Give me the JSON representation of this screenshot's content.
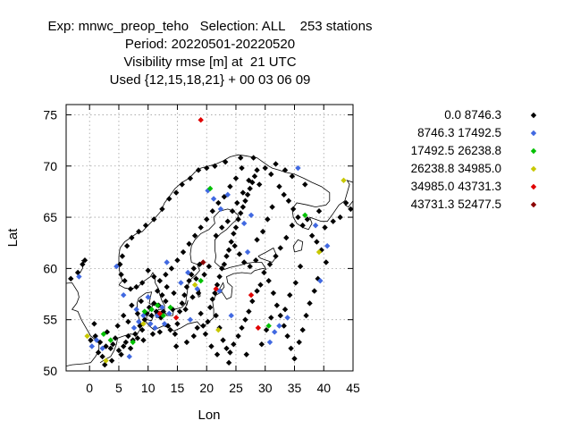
{
  "title": {
    "line1": "Exp: mnwc_preop_teho   Selection: ALL    253 stations",
    "line2": "Period: 20220501-20220520",
    "line3": "Visibility rmse [m] at  21 UTC",
    "line4": "Used {12,15,18,21} + 00 03 06 09"
  },
  "chart_data": {
    "type": "scatter",
    "xlabel": "Lon",
    "ylabel": "Lat",
    "xlim": [
      -4,
      45
    ],
    "ylim": [
      50,
      76
    ],
    "xticks": [
      0,
      5,
      10,
      15,
      20,
      25,
      30,
      35,
      40,
      45
    ],
    "yticks": [
      50,
      55,
      60,
      65,
      70,
      75
    ],
    "grid": true,
    "legend_placement": "right",
    "series": [
      {
        "name": "0.0 8746.3",
        "color": "#000000",
        "points": [
          [
            -3.2,
            59.0
          ],
          [
            -2.0,
            59.6
          ],
          [
            -1.2,
            60.4
          ],
          [
            -0.8,
            60.8
          ],
          [
            0.2,
            53.0
          ],
          [
            1.0,
            53.4
          ],
          [
            1.5,
            51.8
          ],
          [
            2.2,
            51.4
          ],
          [
            2.8,
            52.4
          ],
          [
            3.0,
            53.8
          ],
          [
            3.6,
            52.2
          ],
          [
            4.0,
            52.6
          ],
          [
            4.4,
            53.2
          ],
          [
            5.0,
            52.0
          ],
          [
            5.4,
            51.6
          ],
          [
            5.8,
            52.4
          ],
          [
            6.2,
            52.8
          ],
          [
            6.6,
            53.4
          ],
          [
            7.0,
            52.2
          ],
          [
            7.4,
            53.0
          ],
          [
            7.8,
            53.6
          ],
          [
            8.2,
            53.2
          ],
          [
            8.6,
            54.4
          ],
          [
            9.0,
            54.0
          ],
          [
            9.4,
            55.0
          ],
          [
            9.8,
            55.6
          ],
          [
            10.2,
            56.2
          ],
          [
            10.6,
            55.4
          ],
          [
            11.0,
            56.6
          ],
          [
            11.4,
            55.8
          ],
          [
            11.8,
            56.4
          ],
          [
            12.2,
            55.2
          ],
          [
            12.6,
            55.8
          ],
          [
            13.0,
            56.8
          ],
          [
            13.4,
            54.4
          ],
          [
            13.8,
            54.0
          ],
          [
            14.2,
            56.0
          ],
          [
            14.6,
            53.6
          ],
          [
            15.0,
            54.6
          ],
          [
            15.4,
            55.8
          ],
          [
            15.8,
            56.6
          ],
          [
            16.2,
            57.4
          ],
          [
            16.6,
            58.2
          ],
          [
            17.0,
            58.8
          ],
          [
            17.4,
            59.4
          ],
          [
            17.8,
            60.0
          ],
          [
            18.2,
            59.0
          ],
          [
            18.6,
            57.6
          ],
          [
            19.0,
            55.6
          ],
          [
            19.4,
            54.4
          ],
          [
            19.8,
            53.6
          ],
          [
            20.2,
            54.8
          ],
          [
            20.6,
            56.2
          ],
          [
            21.0,
            57.0
          ],
          [
            21.4,
            57.6
          ],
          [
            21.8,
            58.4
          ],
          [
            22.2,
            59.2
          ],
          [
            22.6,
            60.0
          ],
          [
            23.0,
            60.4
          ],
          [
            23.4,
            61.2
          ],
          [
            23.8,
            61.8
          ],
          [
            24.2,
            62.6
          ],
          [
            24.6,
            63.4
          ],
          [
            25.0,
            64.0
          ],
          [
            25.4,
            64.8
          ],
          [
            25.8,
            65.4
          ],
          [
            26.2,
            66.0
          ],
          [
            26.6,
            66.6
          ],
          [
            27.0,
            67.2
          ],
          [
            27.4,
            67.8
          ],
          [
            27.8,
            68.4
          ],
          [
            28.2,
            69.0
          ],
          [
            28.6,
            69.6
          ],
          [
            29.0,
            68.2
          ],
          [
            26.0,
            69.8
          ],
          [
            25.0,
            68.8
          ],
          [
            24.0,
            68.0
          ],
          [
            23.0,
            67.0
          ],
          [
            22.0,
            66.4
          ],
          [
            21.0,
            65.6
          ],
          [
            20.0,
            64.8
          ],
          [
            19.0,
            64.0
          ],
          [
            18.0,
            63.2
          ],
          [
            17.0,
            62.4
          ],
          [
            16.0,
            61.6
          ],
          [
            15.0,
            60.8
          ],
          [
            14.0,
            60.0
          ],
          [
            13.0,
            59.4
          ],
          [
            12.0,
            58.8
          ],
          [
            11.0,
            59.2
          ],
          [
            10.0,
            59.8
          ],
          [
            9.0,
            58.6
          ],
          [
            8.0,
            58.2
          ],
          [
            7.0,
            58.0
          ],
          [
            6.0,
            58.8
          ],
          [
            5.4,
            59.4
          ],
          [
            5.2,
            60.4
          ],
          [
            5.6,
            61.2
          ],
          [
            6.4,
            62.2
          ],
          [
            7.2,
            63.0
          ],
          [
            8.4,
            63.6
          ],
          [
            9.6,
            64.2
          ],
          [
            11.0,
            64.8
          ],
          [
            12.4,
            65.8
          ],
          [
            13.6,
            66.8
          ],
          [
            14.8,
            67.4
          ],
          [
            15.8,
            68.2
          ],
          [
            17.2,
            68.8
          ],
          [
            18.6,
            69.6
          ],
          [
            20.0,
            69.8
          ],
          [
            21.4,
            70.0
          ],
          [
            23.2,
            70.4
          ],
          [
            25.8,
            70.8
          ],
          [
            28.0,
            70.8
          ],
          [
            30.0,
            69.8
          ],
          [
            31.0,
            69.2
          ],
          [
            32.4,
            68.0
          ],
          [
            33.2,
            67.2
          ],
          [
            34.0,
            66.6
          ],
          [
            34.8,
            65.8
          ],
          [
            35.6,
            65.0
          ],
          [
            36.4,
            64.2
          ],
          [
            37.2,
            64.8
          ],
          [
            38.0,
            63.2
          ],
          [
            38.8,
            62.6
          ],
          [
            39.6,
            61.8
          ],
          [
            40.4,
            60.6
          ],
          [
            34.6,
            64.2
          ],
          [
            33.6,
            63.0
          ],
          [
            32.6,
            62.0
          ],
          [
            31.8,
            61.2
          ],
          [
            30.8,
            60.4
          ],
          [
            29.8,
            59.6
          ],
          [
            29.2,
            58.4
          ],
          [
            28.6,
            57.8
          ],
          [
            27.8,
            56.8
          ],
          [
            27.2,
            55.8
          ],
          [
            26.6,
            55.0
          ],
          [
            26.0,
            54.2
          ],
          [
            25.4,
            53.4
          ],
          [
            24.6,
            52.6
          ],
          [
            24.0,
            51.8
          ],
          [
            23.4,
            52.2
          ],
          [
            22.8,
            53.0
          ],
          [
            22.2,
            54.2
          ],
          [
            21.6,
            55.4
          ],
          [
            30.6,
            58.8
          ],
          [
            31.4,
            57.6
          ],
          [
            32.0,
            56.4
          ],
          [
            32.6,
            55.4
          ],
          [
            33.2,
            54.4
          ],
          [
            33.8,
            53.4
          ],
          [
            34.4,
            52.2
          ],
          [
            35.0,
            51.2
          ],
          [
            35.8,
            52.8
          ],
          [
            36.4,
            54.0
          ],
          [
            37.0,
            55.4
          ],
          [
            37.6,
            56.6
          ],
          [
            38.4,
            57.8
          ],
          [
            39.0,
            59.0
          ],
          [
            36.0,
            60.2
          ],
          [
            35.2,
            58.6
          ],
          [
            34.2,
            57.4
          ],
          [
            33.4,
            56.0
          ],
          [
            28.4,
            60.8
          ],
          [
            27.4,
            60.2
          ],
          [
            26.4,
            60.6
          ],
          [
            25.6,
            61.4
          ],
          [
            24.8,
            62.2
          ],
          [
            21.6,
            63.2
          ],
          [
            22.6,
            64.0
          ],
          [
            23.6,
            64.6
          ],
          [
            24.4,
            65.6
          ],
          [
            25.2,
            66.4
          ],
          [
            26.2,
            67.4
          ],
          [
            27.2,
            68.6
          ],
          [
            30.4,
            64.8
          ],
          [
            31.2,
            66.0
          ],
          [
            29.6,
            63.6
          ],
          [
            28.6,
            62.8
          ],
          [
            43.8,
            66.4
          ],
          [
            44.6,
            65.8
          ],
          [
            42.8,
            65.0
          ],
          [
            41.6,
            64.6
          ],
          [
            40.2,
            64.0
          ],
          [
            39.2,
            65.6
          ],
          [
            36.8,
            68.2
          ],
          [
            34.6,
            69.0
          ],
          [
            33.4,
            69.6
          ],
          [
            31.8,
            70.2
          ],
          [
            18.8,
            60.4
          ],
          [
            19.6,
            59.4
          ],
          [
            20.4,
            60.2
          ],
          [
            17.6,
            57.2
          ],
          [
            16.4,
            56.0
          ],
          [
            14.4,
            57.6
          ],
          [
            13.2,
            58.2
          ],
          [
            12.4,
            57.4
          ],
          [
            11.6,
            57.8
          ],
          [
            8.8,
            56.8
          ],
          [
            8.2,
            55.6
          ],
          [
            7.2,
            56.4
          ],
          [
            6.6,
            54.8
          ],
          [
            5.8,
            55.4
          ],
          [
            4.8,
            54.4
          ],
          [
            3.8,
            51.0
          ],
          [
            2.6,
            50.6
          ],
          [
            1.8,
            52.8
          ],
          [
            0.8,
            54.6
          ],
          [
            9.2,
            53.0
          ],
          [
            10.8,
            53.6
          ],
          [
            12.0,
            53.8
          ],
          [
            14.8,
            52.4
          ],
          [
            16.6,
            52.8
          ],
          [
            17.8,
            53.4
          ],
          [
            18.4,
            54.2
          ],
          [
            20.8,
            52.4
          ],
          [
            21.8,
            51.6
          ],
          [
            23.8,
            50.8
          ],
          [
            26.8,
            51.6
          ],
          [
            29.4,
            52.6
          ],
          [
            30.2,
            54.0
          ],
          [
            31.0,
            55.2
          ]
        ]
      },
      {
        "name": "8746.3 17492.5",
        "color": "#4169e1",
        "points": [
          [
            -1.8,
            59.2
          ],
          [
            0.4,
            52.4
          ],
          [
            1.2,
            53.0
          ],
          [
            4.6,
            60.2
          ],
          [
            5.8,
            57.4
          ],
          [
            7.6,
            54.2
          ],
          [
            8.4,
            54.8
          ],
          [
            9.2,
            55.4
          ],
          [
            10.4,
            54.6
          ],
          [
            11.2,
            54.2
          ],
          [
            12.8,
            54.6
          ],
          [
            8.0,
            56.0
          ],
          [
            10.0,
            57.2
          ],
          [
            11.6,
            55.4
          ],
          [
            12.4,
            56.2
          ],
          [
            13.6,
            55.6
          ],
          [
            15.6,
            58.6
          ],
          [
            16.8,
            59.6
          ],
          [
            18.4,
            58.0
          ],
          [
            20.2,
            67.6
          ],
          [
            21.2,
            66.8
          ],
          [
            22.4,
            65.8
          ],
          [
            23.6,
            67.2
          ],
          [
            26.4,
            64.4
          ],
          [
            27.6,
            65.2
          ],
          [
            35.6,
            69.8
          ],
          [
            38.6,
            64.2
          ],
          [
            40.6,
            62.2
          ],
          [
            39.4,
            58.8
          ],
          [
            33.8,
            55.2
          ],
          [
            32.4,
            54.4
          ],
          [
            31.6,
            53.8
          ],
          [
            30.8,
            52.8
          ],
          [
            24.2,
            55.4
          ],
          [
            22.2,
            57.8
          ],
          [
            17.2,
            55.0
          ],
          [
            6.8,
            51.4
          ],
          [
            2.2,
            52.2
          ],
          [
            13.2,
            60.6
          ],
          [
            27.0,
            61.6
          ]
        ]
      },
      {
        "name": "17492.5 26238.8",
        "color": "#00c000",
        "points": [
          [
            2.4,
            53.6
          ],
          [
            3.6,
            53.0
          ],
          [
            9.4,
            55.8
          ],
          [
            10.6,
            56.0
          ],
          [
            11.6,
            56.4
          ],
          [
            12.6,
            55.4
          ],
          [
            13.8,
            56.2
          ],
          [
            19.0,
            58.8
          ],
          [
            20.6,
            67.8
          ],
          [
            36.8,
            65.2
          ],
          [
            30.6,
            54.4
          ],
          [
            7.4,
            52.8
          ]
        ]
      },
      {
        "name": "26238.8 34985.0",
        "color": "#c8c800",
        "points": [
          [
            -0.4,
            53.4
          ],
          [
            2.8,
            51.0
          ],
          [
            9.2,
            54.6
          ],
          [
            22.0,
            54.0
          ],
          [
            39.2,
            61.6
          ],
          [
            43.4,
            68.6
          ],
          [
            18.0,
            58.4
          ]
        ]
      },
      {
        "name": "34985.0 43731.3",
        "color": "#e00000",
        "points": [
          [
            19.0,
            74.5
          ],
          [
            14.8,
            55.2
          ],
          [
            21.6,
            58.0
          ],
          [
            27.6,
            57.4
          ],
          [
            28.8,
            54.2
          ],
          [
            12.0,
            55.6
          ]
        ]
      },
      {
        "name": "43731.3 52477.5",
        "color": "#8b0000",
        "points": [
          [
            19.4,
            60.6
          ]
        ]
      }
    ]
  }
}
